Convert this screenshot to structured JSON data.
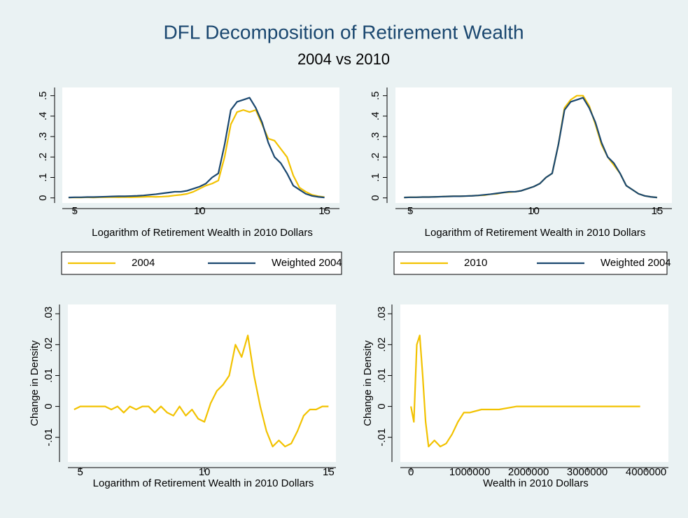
{
  "title": "DFL Decomposition of Retirement Wealth",
  "subtitle": "2004 vs 2010",
  "chart_data": [
    {
      "type": "line",
      "xlabel": "Logarithm of Retirement Wealth in 2010 Dollars",
      "x": [
        4.75,
        5,
        5.25,
        5.5,
        5.75,
        6,
        6.25,
        6.5,
        6.75,
        7,
        7.25,
        7.5,
        7.75,
        8,
        8.25,
        8.5,
        8.75,
        9,
        9.25,
        9.5,
        9.75,
        10,
        10.25,
        10.5,
        10.75,
        11,
        11.25,
        11.5,
        11.75,
        12,
        12.25,
        12.5,
        12.75,
        13,
        13.25,
        13.5,
        13.75,
        14,
        14.25,
        14.5,
        14.75,
        15
      ],
      "series": [
        {
          "name": "2004",
          "color": "#f2c200",
          "values": [
            0.002,
            0.002,
            0.002,
            0.003,
            0.002,
            0.003,
            0.003,
            0.004,
            0.003,
            0.004,
            0.003,
            0.004,
            0.005,
            0.006,
            0.005,
            0.006,
            0.008,
            0.012,
            0.015,
            0.02,
            0.03,
            0.045,
            0.06,
            0.07,
            0.085,
            0.2,
            0.36,
            0.42,
            0.43,
            0.42,
            0.43,
            0.36,
            0.29,
            0.28,
            0.24,
            0.2,
            0.11,
            0.05,
            0.03,
            0.015,
            0.008,
            0.004
          ]
        },
        {
          "name": "Weighted 2004",
          "color": "#1a476f",
          "values": [
            0.002,
            0.003,
            0.003,
            0.004,
            0.004,
            0.005,
            0.006,
            0.007,
            0.008,
            0.008,
            0.009,
            0.01,
            0.012,
            0.015,
            0.018,
            0.022,
            0.026,
            0.03,
            0.03,
            0.035,
            0.045,
            0.055,
            0.07,
            0.1,
            0.12,
            0.26,
            0.43,
            0.47,
            0.48,
            0.49,
            0.44,
            0.37,
            0.27,
            0.2,
            0.17,
            0.12,
            0.06,
            0.04,
            0.02,
            0.01,
            0.005,
            0.002
          ]
        }
      ],
      "xlim": [
        4.5,
        15.6
      ],
      "ylim": [
        -0.025,
        0.54
      ],
      "xticks": [
        5,
        10,
        15
      ],
      "yticks": [
        0,
        {
          "value": 0.1,
          "label": ".1"
        },
        {
          "value": 0.2,
          "label": ".2"
        },
        {
          "value": 0.3,
          "label": ".3"
        },
        {
          "value": 0.4,
          "label": ".4"
        },
        {
          "value": 0.5,
          "label": ".5"
        }
      ],
      "legend": "bottom"
    },
    {
      "type": "line",
      "xlabel": "Logarithm of Retirement Wealth in 2010 Dollars",
      "x": [
        4.75,
        5,
        5.25,
        5.5,
        5.75,
        6,
        6.25,
        6.5,
        6.75,
        7,
        7.25,
        7.5,
        7.75,
        8,
        8.25,
        8.5,
        8.75,
        9,
        9.25,
        9.5,
        9.75,
        10,
        10.25,
        10.5,
        10.75,
        11,
        11.25,
        11.5,
        11.75,
        12,
        12.25,
        12.5,
        12.75,
        13,
        13.25,
        13.5,
        13.75,
        14,
        14.25,
        14.5,
        14.75,
        15
      ],
      "series": [
        {
          "name": "2010",
          "color": "#f2c200",
          "values": [
            0.002,
            0.003,
            0.003,
            0.004,
            0.004,
            0.005,
            0.006,
            0.007,
            0.008,
            0.008,
            0.009,
            0.01,
            0.012,
            0.013,
            0.018,
            0.02,
            0.026,
            0.028,
            0.03,
            0.035,
            0.045,
            0.055,
            0.07,
            0.1,
            0.12,
            0.26,
            0.44,
            0.48,
            0.5,
            0.5,
            0.45,
            0.36,
            0.26,
            0.2,
            0.16,
            0.12,
            0.06,
            0.04,
            0.02,
            0.01,
            0.005,
            0.002
          ]
        },
        {
          "name": "Weighted 2004",
          "color": "#1a476f",
          "values": [
            0.002,
            0.003,
            0.003,
            0.004,
            0.004,
            0.005,
            0.006,
            0.007,
            0.008,
            0.008,
            0.009,
            0.01,
            0.012,
            0.015,
            0.018,
            0.022,
            0.026,
            0.03,
            0.03,
            0.035,
            0.045,
            0.055,
            0.07,
            0.1,
            0.12,
            0.26,
            0.43,
            0.47,
            0.48,
            0.49,
            0.44,
            0.37,
            0.27,
            0.2,
            0.17,
            0.12,
            0.06,
            0.04,
            0.02,
            0.01,
            0.005,
            0.002
          ]
        }
      ],
      "xlim": [
        4.4,
        15.6
      ],
      "ylim": [
        -0.025,
        0.54
      ],
      "xticks": [
        5,
        10,
        15
      ],
      "yticks": [
        0,
        {
          "value": 0.1,
          "label": ".1"
        },
        {
          "value": 0.2,
          "label": ".2"
        },
        {
          "value": 0.3,
          "label": ".3"
        },
        {
          "value": 0.4,
          "label": ".4"
        },
        {
          "value": 0.5,
          "label": ".5"
        }
      ],
      "legend": "bottom"
    },
    {
      "type": "line",
      "xlabel": "Logarithm of Retirement Wealth in 2010 Dollars",
      "ylabel": "Change in Density",
      "x": [
        4.75,
        5,
        5.25,
        5.5,
        5.75,
        6,
        6.25,
        6.5,
        6.75,
        7,
        7.25,
        7.5,
        7.75,
        8,
        8.25,
        8.5,
        8.75,
        9,
        9.25,
        9.5,
        9.75,
        10,
        10.25,
        10.5,
        10.75,
        11,
        11.25,
        11.5,
        11.75,
        12,
        12.25,
        12.5,
        12.75,
        13,
        13.25,
        13.5,
        13.75,
        14,
        14.25,
        14.5,
        14.75,
        15
      ],
      "series": [
        {
          "color": "#f2c200",
          "values": [
            -0.001,
            0,
            0,
            0,
            0,
            0,
            -0.001,
            0,
            -0.002,
            0,
            -0.001,
            0,
            0,
            -0.002,
            0,
            -0.002,
            -0.003,
            0,
            -0.003,
            -0.001,
            -0.004,
            -0.005,
            0.001,
            0.005,
            0.007,
            0.01,
            0.02,
            0.016,
            0.023,
            0.01,
            0,
            -0.008,
            -0.013,
            -0.011,
            -0.013,
            -0.012,
            -0.008,
            -0.003,
            -0.001,
            -0.001,
            0,
            0
          ]
        }
      ],
      "xlim": [
        4.5,
        15.3
      ],
      "ylim": [
        -0.018,
        0.033
      ],
      "xticks": [
        5,
        10,
        15
      ],
      "yticks": [
        {
          "value": -0.01,
          "label": "-.01"
        },
        0,
        {
          "value": 0.01,
          "label": ".01"
        },
        {
          "value": 0.02,
          "label": ".02"
        },
        {
          "value": 0.03,
          "label": ".03"
        }
      ]
    },
    {
      "type": "line",
      "xlabel": "Wealth in 2010 Dollars",
      "ylabel": "Change in Density",
      "x": [
        0,
        50000,
        100000,
        150000,
        200000,
        250000,
        300000,
        400000,
        500000,
        600000,
        700000,
        800000,
        900000,
        1000000,
        1200000,
        1500000,
        1800000,
        2000000,
        2500000,
        3000000,
        3500000,
        3900000
      ],
      "series": [
        {
          "color": "#f2c200",
          "values": [
            0,
            -0.005,
            0.02,
            0.023,
            0.01,
            -0.005,
            -0.013,
            -0.011,
            -0.013,
            -0.012,
            -0.009,
            -0.005,
            -0.002,
            -0.002,
            -0.001,
            -0.001,
            0,
            0,
            0,
            0,
            0,
            0
          ]
        }
      ],
      "xlim": [
        -180000,
        4380000
      ],
      "ylim": [
        -0.018,
        0.033
      ],
      "xticks": [
        0,
        1000000,
        2000000,
        3000000,
        4000000
      ],
      "yticks": [
        {
          "value": -0.01,
          "label": "-.01"
        },
        0,
        {
          "value": 0.01,
          "label": ".01"
        },
        {
          "value": 0.02,
          "label": ".02"
        },
        {
          "value": 0.03,
          "label": ".03"
        }
      ]
    }
  ]
}
